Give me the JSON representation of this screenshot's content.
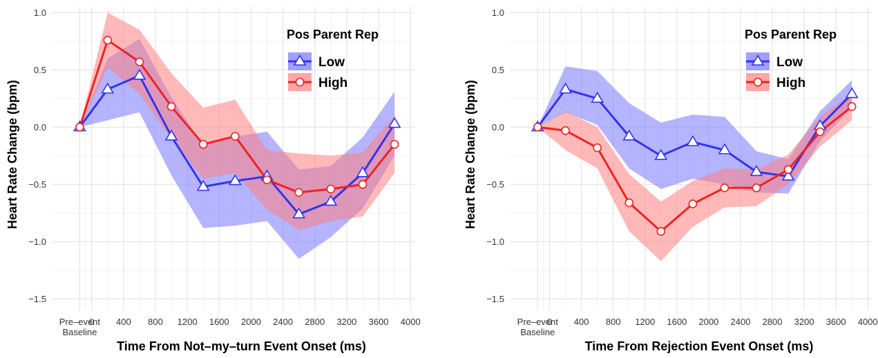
{
  "chart_data": [
    {
      "type": "line",
      "xlabel": "Time From Not–my–turn Event Onset (ms)",
      "ylabel": "Heart Rate Change (bpm)",
      "xlim": [
        -500,
        4050
      ],
      "ylim": [
        -1.6,
        1.05
      ],
      "x_ticks": [
        {
          "value": -150,
          "label": "Pre–event",
          "label2": "Baseline"
        },
        {
          "value": 0,
          "label": "0"
        },
        {
          "value": 400,
          "label": "400"
        },
        {
          "value": 800,
          "label": "800"
        },
        {
          "value": 1200,
          "label": "1200"
        },
        {
          "value": 1600,
          "label": "1600"
        },
        {
          "value": 2000,
          "label": "2000"
        },
        {
          "value": 2400,
          "label": "2400"
        },
        {
          "value": 2800,
          "label": "2800"
        },
        {
          "value": 3200,
          "label": "3200"
        },
        {
          "value": 3600,
          "label": "3600"
        },
        {
          "value": 4000,
          "label": "4000"
        }
      ],
      "y_ticks": [
        {
          "value": 1.0,
          "label": "1.0"
        },
        {
          "value": 0.5,
          "label": "0.5"
        },
        {
          "value": 0.0,
          "label": "0.0"
        },
        {
          "value": -0.5,
          "label": "−0.5"
        },
        {
          "value": -1.0,
          "label": "−1.0"
        },
        {
          "value": -1.5,
          "label": "−1.5"
        }
      ],
      "legend": {
        "title": "Pos Parent Rep",
        "position": "top-right"
      },
      "grid": true,
      "x": [
        -150,
        200,
        600,
        1000,
        1400,
        1800,
        2200,
        2600,
        3000,
        3400,
        3800
      ],
      "series": [
        {
          "name": "Low",
          "color": "#3333ee",
          "band_color": "#7777ff",
          "marker": "triangle",
          "values": [
            0.0,
            0.33,
            0.45,
            -0.08,
            -0.52,
            -0.47,
            -0.43,
            -0.76,
            -0.65,
            -0.4,
            0.03
          ],
          "lower": [
            0.0,
            0.06,
            0.13,
            -0.42,
            -0.88,
            -0.86,
            -0.82,
            -1.15,
            -0.96,
            -0.71,
            -0.25
          ],
          "upper": [
            0.0,
            0.6,
            0.77,
            0.26,
            -0.16,
            -0.08,
            -0.04,
            -0.37,
            -0.34,
            -0.09,
            0.31
          ]
        },
        {
          "name": "High",
          "color": "#ee2222",
          "band_color": "#ff8080",
          "marker": "circle",
          "values": [
            0.0,
            0.76,
            0.57,
            0.18,
            -0.15,
            -0.08,
            -0.46,
            -0.57,
            -0.54,
            -0.5,
            -0.15
          ],
          "lower": [
            0.0,
            0.52,
            0.29,
            -0.1,
            -0.45,
            -0.4,
            -0.72,
            -0.9,
            -0.82,
            -0.78,
            -0.4
          ],
          "upper": [
            0.0,
            1.0,
            0.85,
            0.47,
            0.17,
            0.24,
            -0.2,
            -0.23,
            -0.25,
            -0.22,
            0.1
          ]
        }
      ]
    },
    {
      "type": "line",
      "xlabel": "Time From Rejection Event Onset (ms)",
      "ylabel": "Heart Rate Change (bpm)",
      "xlim": [
        -500,
        4050
      ],
      "ylim": [
        -1.6,
        1.05
      ],
      "x_ticks": [
        {
          "value": -150,
          "label": "Pre–event",
          "label2": "Baseline"
        },
        {
          "value": 0,
          "label": "0"
        },
        {
          "value": 400,
          "label": "400"
        },
        {
          "value": 800,
          "label": "800"
        },
        {
          "value": 1200,
          "label": "1200"
        },
        {
          "value": 1600,
          "label": "1600"
        },
        {
          "value": 2000,
          "label": "2000"
        },
        {
          "value": 2400,
          "label": "2400"
        },
        {
          "value": 2800,
          "label": "2800"
        },
        {
          "value": 3200,
          "label": "3200"
        },
        {
          "value": 3600,
          "label": "3600"
        },
        {
          "value": 4000,
          "label": "4000"
        }
      ],
      "y_ticks": [
        {
          "value": 1.0,
          "label": "1.0"
        },
        {
          "value": 0.5,
          "label": "0.5"
        },
        {
          "value": 0.0,
          "label": "0.0"
        },
        {
          "value": -0.5,
          "label": "−0.5"
        },
        {
          "value": -1.0,
          "label": "−1.0"
        },
        {
          "value": -1.5,
          "label": "−1.5"
        }
      ],
      "legend": {
        "title": "Pos Parent Rep",
        "position": "top-right"
      },
      "grid": true,
      "x": [
        -150,
        200,
        600,
        1000,
        1400,
        1800,
        2200,
        2600,
        3000,
        3400,
        3800
      ],
      "series": [
        {
          "name": "Low",
          "color": "#3333ee",
          "band_color": "#7777ff",
          "marker": "triangle",
          "values": [
            0.0,
            0.33,
            0.25,
            -0.08,
            -0.25,
            -0.13,
            -0.2,
            -0.39,
            -0.43,
            0.01,
            0.29
          ],
          "lower": [
            0.0,
            0.13,
            0.02,
            -0.36,
            -0.54,
            -0.45,
            -0.5,
            -0.57,
            -0.58,
            -0.12,
            0.17
          ],
          "upper": [
            0.0,
            0.53,
            0.49,
            0.21,
            0.04,
            0.11,
            0.09,
            -0.21,
            -0.28,
            0.14,
            0.41
          ]
        },
        {
          "name": "High",
          "color": "#ee2222",
          "band_color": "#ff8080",
          "marker": "circle",
          "values": [
            0.0,
            -0.03,
            -0.18,
            -0.66,
            -0.91,
            -0.67,
            -0.53,
            -0.53,
            -0.37,
            -0.04,
            0.18
          ],
          "lower": [
            0.0,
            -0.2,
            -0.36,
            -0.91,
            -1.17,
            -0.87,
            -0.7,
            -0.69,
            -0.5,
            -0.17,
            0.06
          ],
          "upper": [
            0.0,
            0.14,
            0.0,
            -0.41,
            -0.65,
            -0.47,
            -0.36,
            -0.37,
            -0.24,
            0.09,
            0.3
          ]
        }
      ]
    }
  ]
}
